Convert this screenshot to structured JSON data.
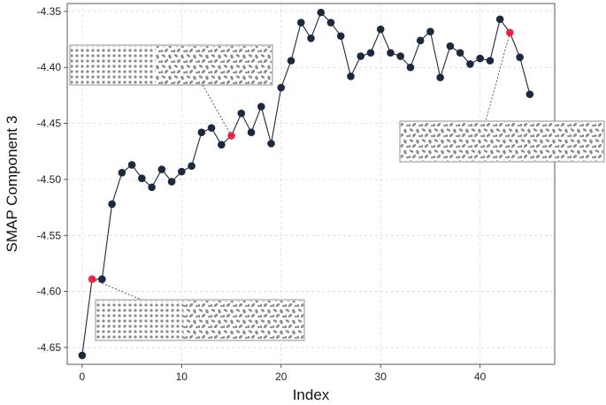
{
  "chart_data": {
    "type": "line",
    "title": "",
    "xlabel": "Index",
    "ylabel": "SMAP Component 3",
    "xlim": [
      -1.5,
      47.5
    ],
    "ylim": [
      -4.665,
      -4.343
    ],
    "xticks": [
      0,
      10,
      20,
      30,
      40
    ],
    "yticks": [
      -4.65,
      -4.6,
      -4.55,
      -4.5,
      -4.45,
      -4.4,
      -4.35
    ],
    "ytick_labels": [
      "-4.65",
      "-4.60",
      "-4.55",
      "-4.50",
      "-4.45",
      "-4.40",
      "-4.35"
    ],
    "grid": true,
    "colors": {
      "series": "#1b2a3f",
      "highlight": "#f0254a",
      "texture": "#8a8a8a"
    },
    "x": [
      0,
      1,
      2,
      3,
      4,
      5,
      6,
      7,
      8,
      9,
      10,
      11,
      12,
      13,
      14,
      15,
      16,
      17,
      18,
      19,
      20,
      21,
      22,
      23,
      24,
      25,
      26,
      27,
      28,
      29,
      30,
      31,
      32,
      33,
      34,
      35,
      36,
      37,
      38,
      39,
      40,
      41,
      42,
      43,
      44,
      45
    ],
    "y": [
      -4.657,
      -4.589,
      -4.589,
      -4.522,
      -4.494,
      -4.487,
      -4.499,
      -4.507,
      -4.491,
      -4.502,
      -4.493,
      -4.488,
      -4.458,
      -4.454,
      -4.469,
      -4.461,
      -4.441,
      -4.458,
      -4.435,
      -4.468,
      -4.418,
      -4.394,
      -4.36,
      -4.374,
      -4.351,
      -4.36,
      -4.372,
      -4.408,
      -4.39,
      -4.387,
      -4.366,
      -4.387,
      -4.39,
      -4.4,
      -4.376,
      -4.368,
      -4.409,
      -4.381,
      -4.387,
      -4.397,
      -4.392,
      -4.394,
      -4.357,
      -4.369,
      -4.391,
      -4.424
    ],
    "highlighted": [
      {
        "x": 1,
        "y": -4.589
      },
      {
        "x": 15,
        "y": -4.461
      },
      {
        "x": 43,
        "y": -4.369
      }
    ],
    "insets": [
      {
        "for_index": 15,
        "pattern": "texture-transition"
      },
      {
        "for_index": 1,
        "pattern": "texture-transition"
      },
      {
        "for_index": 43,
        "pattern": "texture-random"
      }
    ]
  }
}
